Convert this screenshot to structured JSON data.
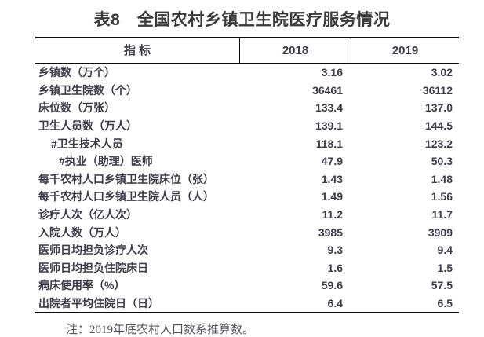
{
  "title": "表8　全国农村乡镇卫生院医疗服务情况",
  "table": {
    "columns": [
      "指 标",
      "2018",
      "2019"
    ],
    "rows": [
      {
        "label": "乡镇数（万个）",
        "indent": 0,
        "v2018": "3.16",
        "v2019": "3.02"
      },
      {
        "label": "乡镇卫生院数（个）",
        "indent": 0,
        "v2018": "36461",
        "v2019": "36112"
      },
      {
        "label": "床位数（万张）",
        "indent": 0,
        "v2018": "133.4",
        "v2019": "137.0"
      },
      {
        "label": "卫生人员数（万人）",
        "indent": 0,
        "v2018": "139.1",
        "v2019": "144.5"
      },
      {
        "label": "#卫生技术人员",
        "indent": 1,
        "v2018": "118.1",
        "v2019": "123.2"
      },
      {
        "label": "#执业（助理）医师",
        "indent": 2,
        "v2018": "47.9",
        "v2019": "50.3"
      },
      {
        "label": "每千农村人口乡镇卫生院床位（张）",
        "indent": 0,
        "v2018": "1.43",
        "v2019": "1.48"
      },
      {
        "label": "每千农村人口乡镇卫生院人员（人）",
        "indent": 0,
        "v2018": "1.49",
        "v2019": "1.56"
      },
      {
        "label": "诊疗人次（亿人次）",
        "indent": 0,
        "v2018": "11.2",
        "v2019": "11.7"
      },
      {
        "label": "入院人数（万人）",
        "indent": 0,
        "v2018": "3985",
        "v2019": "3909"
      },
      {
        "label": "医师日均担负诊疗人次",
        "indent": 0,
        "v2018": "9.3",
        "v2019": "9.4"
      },
      {
        "label": "医师日均担负住院床日",
        "indent": 0,
        "v2018": "1.6",
        "v2019": "1.5"
      },
      {
        "label": "病床使用率（%）",
        "indent": 0,
        "v2018": "59.6",
        "v2019": "57.5"
      },
      {
        "label": "出院者平均住院日（日）",
        "indent": 0,
        "v2018": "6.4",
        "v2019": "6.5"
      }
    ]
  },
  "note": "注：2019年底农村人口数系推算数。",
  "colors": {
    "text": "#3c3c4a",
    "title": "#3a3a3e",
    "border": "#0a0a0a",
    "note": "#54545c",
    "background": "#ffffff"
  }
}
